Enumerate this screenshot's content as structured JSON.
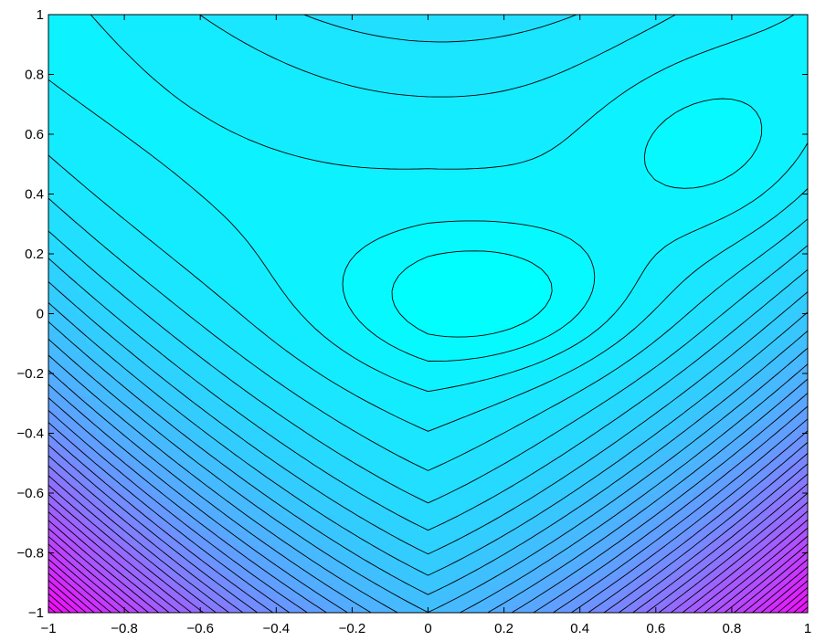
{
  "chart_data": {
    "type": "contour",
    "title": "",
    "xlabel": "",
    "ylabel": "",
    "xlim": [
      -1,
      1
    ],
    "ylim": [
      -1,
      1
    ],
    "x_ticks": [
      "−1",
      "−0.8",
      "−0.6",
      "−0.4",
      "−0.2",
      "0",
      "0.2",
      "0.4",
      "0.6",
      "0.8",
      "1"
    ],
    "y_ticks": [
      "1",
      "0.8",
      "0.6",
      "0.4",
      "0.2",
      "0",
      "−0.2",
      "−0.4",
      "−0.6",
      "−0.8",
      "−1"
    ],
    "colormap": "cool",
    "colormap_colors": [
      "#00ffff",
      "#ff00ff"
    ],
    "levels": 40,
    "line_color": "#000000",
    "grid": false,
    "legend": "none",
    "surface": "peaks-like: minimum valley curving from top-right through center (0.1, 0) toward top-left, rising steeply toward bottom corners"
  }
}
